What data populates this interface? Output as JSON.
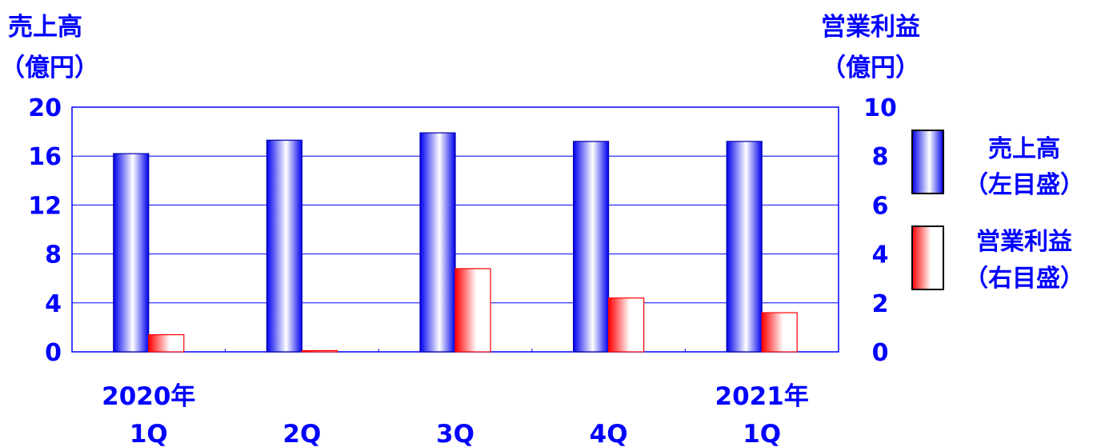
{
  "chart_data": {
    "type": "bar",
    "titles": {
      "left_line1": "売上高",
      "left_line2": "（億円）",
      "right_line1": "営業利益",
      "right_line2": "（億円）"
    },
    "categories": [
      [
        "2020年",
        "1Q"
      ],
      [
        "",
        "2Q"
      ],
      [
        "",
        "3Q"
      ],
      [
        "",
        "4Q"
      ],
      [
        "2021年",
        "1Q"
      ]
    ],
    "left_axis": {
      "min": 0,
      "max": 20,
      "ticks": [
        "0",
        "4",
        "8",
        "12",
        "16",
        "20"
      ]
    },
    "right_axis": {
      "min": 0,
      "max": 10,
      "ticks": [
        "0",
        "2",
        "4",
        "6",
        "8",
        "10"
      ]
    },
    "series": [
      {
        "name": "売上高",
        "axis": "left",
        "values": [
          16.2,
          17.3,
          17.9,
          17.2,
          17.2
        ],
        "color": "#0000ff"
      },
      {
        "name": "営業利益",
        "axis": "right",
        "values": [
          0.7,
          0.05,
          3.4,
          2.2,
          1.6
        ],
        "color": "#ff0000"
      }
    ],
    "legend": {
      "placement": "right",
      "items": [
        {
          "line1": "売上高",
          "line2": "（左目盛）"
        },
        {
          "line1": "営業利益",
          "line2": "（右目盛）"
        }
      ]
    },
    "grid": true
  }
}
